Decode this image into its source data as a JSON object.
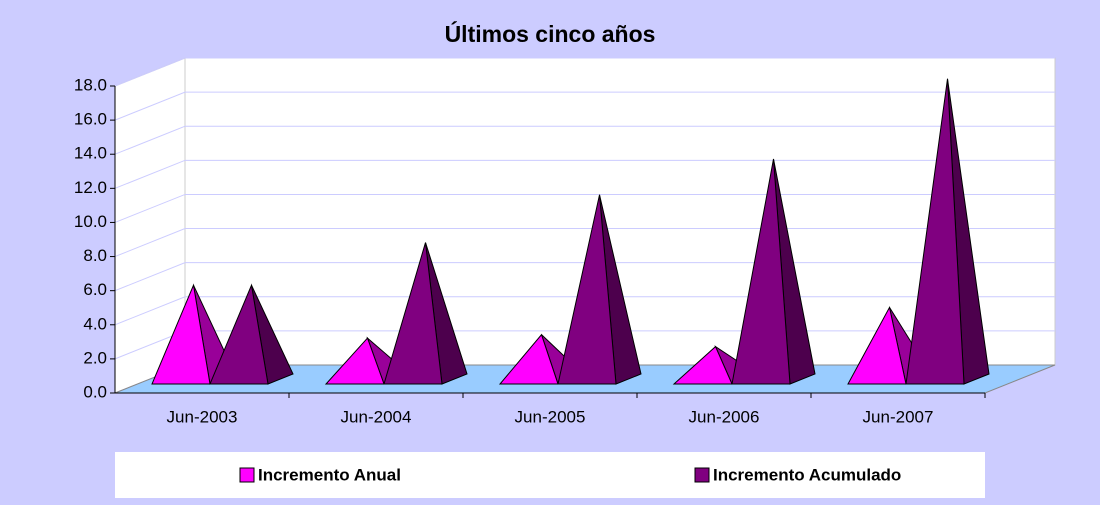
{
  "chart_data": {
    "type": "pyramid3d",
    "title": "Últimos cinco años",
    "categories": [
      "Jun-2003",
      "Jun-2004",
      "Jun-2005",
      "Jun-2006",
      "Jun-2007"
    ],
    "series": [
      {
        "name": "Incremento Anual",
        "color": "#ff00ff",
        "values": [
          5.5,
          2.4,
          2.6,
          1.9,
          4.2
        ]
      },
      {
        "name": "Incremento Acumulado",
        "color": "#800080",
        "values": [
          5.5,
          8.0,
          10.8,
          12.9,
          17.6
        ]
      }
    ],
    "ylim": [
      0,
      18
    ],
    "yticks": [
      {
        "value": 0,
        "label": "0.0"
      },
      {
        "value": 2,
        "label": "2.0"
      },
      {
        "value": 4,
        "label": "4.0"
      },
      {
        "value": 6,
        "label": "6.0"
      },
      {
        "value": 8,
        "label": "8.0"
      },
      {
        "value": 10,
        "label": "10.0"
      },
      {
        "value": 12,
        "label": "12.0"
      },
      {
        "value": 14,
        "label": "14.0"
      },
      {
        "value": 16,
        "label": "16.0"
      },
      {
        "value": 18,
        "label": "18.0"
      }
    ],
    "grid": true,
    "legend": "bottom"
  }
}
